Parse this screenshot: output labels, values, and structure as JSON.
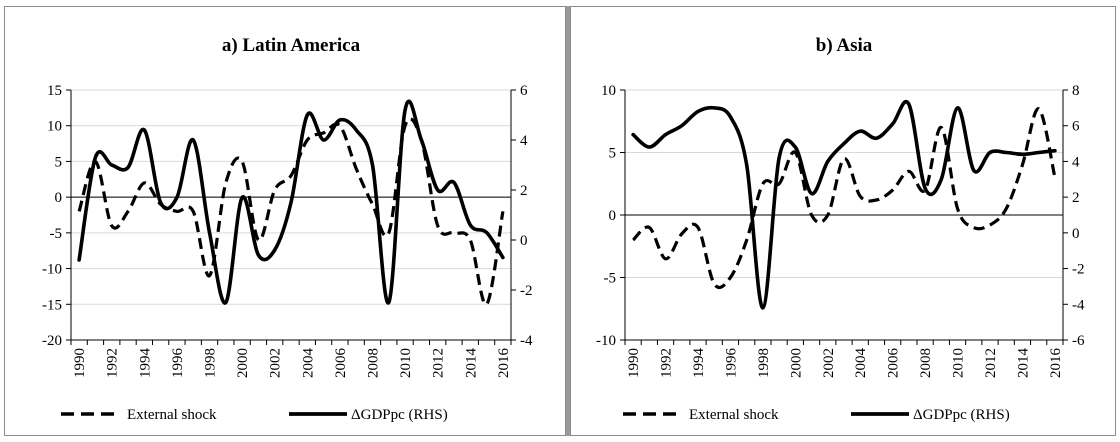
{
  "legend": {
    "external": "External shock",
    "gdp": "ΔGDPpc (RHS)"
  },
  "chart_data": [
    {
      "type": "line",
      "title": "a) Latin America",
      "x": [
        1990,
        1991,
        1992,
        1993,
        1994,
        1995,
        1996,
        1997,
        1998,
        1999,
        2000,
        2001,
        2002,
        2003,
        2004,
        2005,
        2006,
        2007,
        2008,
        2009,
        2010,
        2011,
        2012,
        2013,
        2014,
        2015,
        2016
      ],
      "x_tick_labels": [
        "1990",
        "1992",
        "1994",
        "1996",
        "1998",
        "2000",
        "2002",
        "2004",
        "2006",
        "2008",
        "2010",
        "2012",
        "2014",
        "2016"
      ],
      "ylim_left": [
        -20,
        15
      ],
      "ylim_right": [
        -4,
        6
      ],
      "y_ticks_left": [
        "15",
        "10",
        "5",
        "0",
        "-5",
        "-10",
        "-15",
        "-20"
      ],
      "y_ticks_right": [
        "6",
        "4",
        "2",
        "0",
        "-2",
        "-4"
      ],
      "series": [
        {
          "name": "External shock",
          "axis": "left",
          "style": "dashed",
          "values": [
            -2,
            5,
            -4,
            -2,
            2,
            -1,
            -2,
            -2,
            -11,
            2,
            5,
            -6,
            1,
            3,
            8,
            9,
            10,
            4,
            -1,
            -5,
            10,
            8,
            -4,
            -5,
            -6,
            -15,
            -2
          ]
        },
        {
          "name": "ΔGDPpc (RHS)",
          "axis": "right",
          "style": "solid",
          "values": [
            -0.8,
            3.3,
            3.0,
            2.9,
            4.4,
            1.5,
            1.7,
            4.0,
            0.3,
            -2.5,
            1.7,
            -0.6,
            -0.4,
            1.5,
            5.0,
            4.0,
            4.8,
            4.4,
            3.0,
            -2.5,
            5.2,
            4.0,
            2.0,
            2.3,
            0.6,
            0.3,
            -0.7
          ]
        }
      ]
    },
    {
      "type": "line",
      "title": "b) Asia",
      "x": [
        1990,
        1991,
        1992,
        1993,
        1994,
        1995,
        1996,
        1997,
        1998,
        1999,
        2000,
        2001,
        2002,
        2003,
        2004,
        2005,
        2006,
        2007,
        2008,
        2009,
        2010,
        2011,
        2012,
        2013,
        2014,
        2015,
        2016
      ],
      "x_tick_labels": [
        "1990",
        "1992",
        "1994",
        "1996",
        "1998",
        "2000",
        "2002",
        "2004",
        "2006",
        "2008",
        "2010",
        "2012",
        "2014",
        "2016"
      ],
      "ylim_left": [
        -10,
        10
      ],
      "ylim_right": [
        -6,
        8
      ],
      "y_ticks_left": [
        "10",
        "5",
        "0",
        "-5",
        "-10"
      ],
      "y_ticks_right": [
        "8",
        "6",
        "4",
        "2",
        "0",
        "-2",
        "-4",
        "-6"
      ],
      "series": [
        {
          "name": "External shock",
          "axis": "left",
          "style": "dashed",
          "values": [
            -2,
            -1,
            -3.5,
            -1.5,
            -1,
            -5.5,
            -5,
            -2,
            2.5,
            2.5,
            5,
            0,
            0,
            4.5,
            1.5,
            1.2,
            2,
            3.5,
            2,
            7,
            0.5,
            -1,
            -0.8,
            0.5,
            4,
            8.5,
            3
          ]
        },
        {
          "name": "ΔGDPpc (RHS)",
          "axis": "right",
          "style": "solid",
          "values": [
            5.5,
            4.8,
            5.5,
            6.0,
            6.8,
            7.0,
            6.5,
            3.8,
            -4.2,
            4.2,
            4.8,
            2.2,
            4.0,
            5.0,
            5.7,
            5.3,
            6.1,
            7.2,
            2.5,
            3.0,
            7.0,
            3.5,
            4.5,
            4.5,
            4.4,
            4.5,
            4.6
          ]
        }
      ]
    }
  ]
}
